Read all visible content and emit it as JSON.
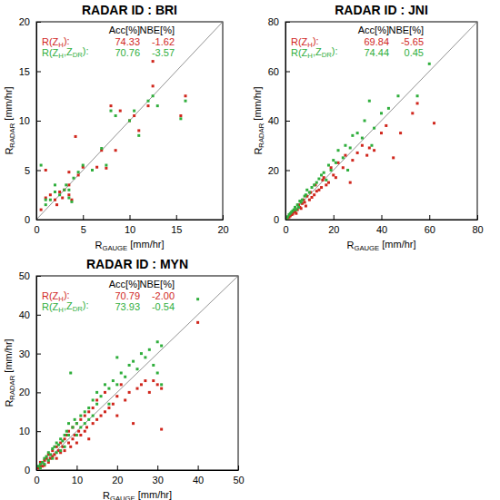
{
  "chart_data": [
    {
      "type": "scatter",
      "title": "RADAR ID : BRI",
      "x_label": "RGAUGE [mm/hr]",
      "y_label": "RRADAR [mm/hr]",
      "xlim": [
        0,
        20
      ],
      "ylim": [
        0,
        20
      ],
      "xticks": [
        0,
        5,
        10,
        15,
        20
      ],
      "yticks": [
        0,
        5,
        10,
        15,
        20
      ],
      "stats_header": [
        "Acc[%]",
        "NBE[%]"
      ],
      "series": [
        {
          "name": "R(ZH):",
          "color": "#d0261c",
          "marker": "square",
          "acc": 74.33,
          "nbe": -1.62,
          "x": [
            0.5,
            1,
            1.5,
            2,
            2.2,
            2.5,
            3,
            3.5,
            3.5,
            3.8,
            4.2,
            4.5,
            5,
            6.5,
            7,
            7.5,
            8,
            8.5,
            9,
            10,
            10.5,
            11,
            12,
            12.5,
            12.5,
            15.5,
            16,
            3.5,
            1,
            2.8
          ],
          "values": [
            1.0,
            2.2,
            2.5,
            2,
            1.5,
            2.8,
            3,
            2.5,
            3.5,
            2,
            8.4,
            4.5,
            5.3,
            5.3,
            7,
            5.2,
            11.5,
            7,
            11,
            10,
            10.5,
            9,
            11.5,
            13.5,
            16,
            10.5,
            12.5,
            4.8,
            5,
            2.2
          ]
        },
        {
          "name": "R(ZH,ZDR):",
          "color": "#2fae3c",
          "marker": "square",
          "acc": 70.76,
          "nbe": -3.57,
          "x": [
            0.5,
            1,
            1.5,
            2,
            2.5,
            3,
            3.2,
            3.5,
            3.8,
            4,
            4.5,
            5,
            6,
            7,
            7.5,
            8,
            8.5,
            10,
            10.5,
            11,
            12,
            12.5,
            13,
            15.5,
            16,
            3.5,
            1,
            2
          ],
          "values": [
            5.5,
            1.5,
            2,
            2.8,
            2.5,
            3,
            3.5,
            2.2,
            1.8,
            4.2,
            4.8,
            5.5,
            5.0,
            7.2,
            5.5,
            11,
            10.5,
            10,
            11,
            8.5,
            12,
            12.5,
            11.5,
            10.2,
            12,
            3,
            2,
            3.5
          ]
        }
      ]
    },
    {
      "type": "scatter",
      "title": "RADAR ID : JNI",
      "x_label": "RGAUGE [mm/hr]",
      "y_label": "RRADAR [mm/hr]",
      "xlim": [
        0,
        80
      ],
      "ylim": [
        0,
        80
      ],
      "xticks": [
        0,
        20,
        40,
        60,
        80
      ],
      "yticks": [
        0,
        20,
        40,
        60,
        80
      ],
      "stats_header": [
        "Acc[%]",
        "NBE[%]"
      ],
      "series": [
        {
          "name": "R(ZH):",
          "color": "#d0261c",
          "marker": "square",
          "acc": 69.84,
          "nbe": -5.65,
          "x": [
            0.5,
            1,
            1.5,
            2,
            2.5,
            3,
            3.5,
            4,
            4.5,
            5,
            5.5,
            6,
            6.5,
            7,
            7.5,
            8,
            8.5,
            9,
            10,
            10.5,
            11,
            12,
            12.5,
            13,
            14,
            15,
            15.5,
            16,
            17,
            18,
            19,
            20,
            21,
            22,
            24,
            25,
            27,
            28,
            30,
            32,
            35,
            37,
            40,
            42,
            45,
            53,
            55,
            62,
            48,
            34
          ],
          "values": [
            0.3,
            0.8,
            1,
            1.5,
            2,
            2.2,
            3,
            3.5,
            2.5,
            4,
            6,
            5,
            4.5,
            6.5,
            8,
            7,
            5.5,
            9.5,
            8,
            11,
            9,
            10,
            14,
            11.5,
            12,
            13,
            16,
            17,
            14,
            15,
            21,
            18,
            17,
            23,
            21,
            26,
            15,
            24,
            27,
            30,
            29,
            28,
            35,
            38,
            25,
            43,
            47,
            39,
            35,
            26
          ]
        },
        {
          "name": "R(ZH,ZDR):",
          "color": "#2fae3c",
          "marker": "square",
          "acc": 74.44,
          "nbe": 0.45,
          "x": [
            0.5,
            1,
            1.5,
            2,
            2.5,
            3,
            3.5,
            4,
            4.5,
            5,
            5.5,
            6,
            6.5,
            7,
            8,
            8.5,
            9,
            10,
            11,
            12,
            13,
            14,
            15,
            16,
            17,
            18,
            19,
            20,
            21,
            22,
            24,
            25,
            27,
            28,
            30,
            32,
            33,
            35,
            37,
            40,
            43,
            47,
            55,
            60,
            26,
            36
          ],
          "values": [
            0.6,
            1.2,
            2,
            2.5,
            3,
            3.5,
            4,
            5,
            4,
            6,
            5,
            7.5,
            7,
            8,
            9.5,
            10,
            12,
            11,
            13,
            14,
            15,
            16.5,
            18,
            19,
            16,
            22,
            20,
            24,
            23,
            28,
            25,
            30,
            29,
            34,
            35,
            33,
            40,
            48,
            37,
            43,
            45,
            50,
            50,
            63,
            20,
            30
          ]
        }
      ]
    },
    {
      "type": "scatter",
      "title": "RADAR ID : MYN",
      "x_label": "RGAUGE [mm/hr]",
      "y_label": "RRADAR [mm/hr]",
      "xlim": [
        0,
        50
      ],
      "ylim": [
        0,
        50
      ],
      "xticks": [
        0,
        10,
        20,
        30,
        40,
        50
      ],
      "yticks": [
        0,
        10,
        20,
        30,
        40,
        50
      ],
      "stats_header": [
        "Acc[%]",
        "NBE[%]"
      ],
      "series": [
        {
          "name": "R(ZH):",
          "color": "#d0261c",
          "marker": "square",
          "acc": 70.79,
          "nbe": {
            "value": -2.0,
            "label": "-2.00"
          },
          "x": [
            0.5,
            1,
            1,
            1.5,
            2,
            2,
            2.5,
            3,
            3,
            3.5,
            4,
            4,
            4.5,
            5,
            5,
            5.5,
            6,
            6,
            6.5,
            7,
            7,
            7.5,
            8,
            8,
            8.5,
            9,
            9,
            9.5,
            10,
            10,
            10.5,
            11,
            11,
            12,
            12,
            12.5,
            13,
            13,
            14,
            14,
            15,
            15,
            16,
            17,
            17,
            18,
            19,
            20,
            20,
            21,
            22,
            23,
            24,
            25,
            26,
            27,
            28,
            29,
            30,
            31,
            31,
            40
          ],
          "values": [
            0.5,
            1,
            2,
            1,
            2.5,
            1.2,
            3,
            2,
            4,
            3,
            3.5,
            5,
            4,
            6,
            3,
            5,
            7,
            4.5,
            6,
            8,
            5,
            9,
            7,
            10,
            6,
            11,
            8,
            9,
            12,
            7,
            10,
            13,
            9,
            14,
            10,
            11,
            15,
            8,
            12,
            16,
            13,
            18,
            14,
            15,
            20,
            16,
            17,
            19,
            14,
            22,
            18,
            20,
            12,
            21,
            22,
            23,
            20,
            23,
            22,
            10.5,
            21,
            38
          ]
        },
        {
          "name": "R(ZH,ZDR):",
          "color": "#2fae3c",
          "marker": "square",
          "acc": 73.93,
          "nbe": -0.54,
          "x": [
            0.5,
            1,
            1,
            1.5,
            2,
            2,
            2.5,
            3,
            3,
            3.5,
            4,
            4,
            4.5,
            5,
            5,
            5.5,
            6,
            6,
            6.5,
            7,
            7,
            7.5,
            8,
            8,
            8.5,
            9,
            9.5,
            10,
            10,
            11,
            11,
            12,
            12,
            13,
            13,
            14,
            14,
            15,
            15,
            16,
            17,
            18,
            18,
            19,
            20,
            20,
            21,
            22,
            23,
            24,
            25,
            26,
            27,
            28,
            29,
            30,
            30,
            31,
            40,
            31
          ],
          "values": [
            1,
            1.5,
            0.5,
            2,
            3,
            1.5,
            3.5,
            4.5,
            2.5,
            4,
            5.5,
            3,
            6,
            7,
            4.5,
            6.5,
            8,
            5,
            7.5,
            9,
            6,
            10,
            9,
            12,
            25,
            11,
            13,
            12,
            9,
            14,
            11,
            15,
            12,
            16,
            13,
            18,
            14,
            17,
            20,
            19,
            22,
            21,
            17,
            23,
            22,
            29,
            25,
            24,
            27,
            28,
            26,
            30,
            29,
            31,
            27,
            25,
            33,
            32,
            44,
            22
          ]
        }
      ]
    }
  ]
}
